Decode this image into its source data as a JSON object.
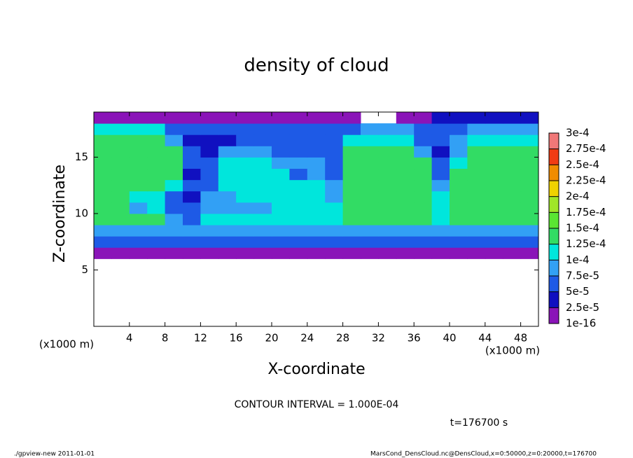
{
  "chart_data": {
    "type": "heatmap",
    "title": "density of cloud",
    "xlabel": "X-coordinate",
    "ylabel": "Z-coordinate",
    "x_unit": "(x1000 m)",
    "y_unit": "(x1000 m)",
    "xlim": [
      0,
      50
    ],
    "xticks": [
      4,
      8,
      12,
      16,
      20,
      24,
      28,
      32,
      36,
      40,
      44,
      48
    ],
    "ylim": [
      0,
      19
    ],
    "yticks": [
      5,
      10,
      15
    ],
    "x": [
      1,
      3,
      5,
      7,
      9,
      11,
      13,
      15,
      17,
      19,
      21,
      23,
      25,
      27,
      29,
      31,
      33,
      35,
      37,
      39,
      41,
      43,
      45,
      47,
      49
    ],
    "y": [
      6.5,
      7.5,
      8.5,
      9.5,
      10.5,
      11.5,
      12.5,
      13.5,
      14.5,
      15.5,
      16.5,
      17.5,
      18.5
    ],
    "z": [
      [
        1e-05,
        1e-05,
        1e-05,
        1e-05,
        1e-05,
        1e-05,
        1e-05,
        1e-05,
        1e-05,
        1e-05,
        1e-05,
        1e-05,
        1e-05,
        1e-05,
        1e-05,
        1e-05,
        1e-05,
        1e-05,
        1e-05,
        1e-05,
        1e-05,
        1e-05,
        1e-05,
        1e-05,
        1e-05
      ],
      [
        5e-05,
        5e-05,
        5e-05,
        5e-05,
        5e-05,
        5e-05,
        5e-05,
        5e-05,
        5e-05,
        5e-05,
        5e-05,
        5e-05,
        5e-05,
        5e-05,
        5e-05,
        5e-05,
        5e-05,
        5e-05,
        5e-05,
        5e-05,
        5e-05,
        5e-05,
        5e-05,
        5e-05,
        5e-05
      ],
      [
        9e-05,
        9e-05,
        9e-05,
        9e-05,
        9e-05,
        9e-05,
        9e-05,
        9e-05,
        9e-05,
        9e-05,
        9e-05,
        9e-05,
        9e-05,
        9e-05,
        9e-05,
        9e-05,
        9e-05,
        9e-05,
        9e-05,
        9e-05,
        9e-05,
        9e-05,
        9e-05,
        9e-05,
        9e-05
      ],
      [
        0.00013,
        0.00013,
        0.00013,
        0.00013,
        8e-05,
        5e-05,
        0.00011,
        0.00011,
        0.00011,
        0.00011,
        0.00011,
        0.00011,
        0.00011,
        0.00011,
        0.00013,
        0.00013,
        0.00013,
        0.00013,
        0.00013,
        0.00011,
        0.00013,
        0.00013,
        0.00013,
        0.00013,
        0.00013
      ],
      [
        0.00013,
        0.00013,
        8e-05,
        0.0001,
        6e-05,
        5e-05,
        9e-05,
        9e-05,
        9e-05,
        9e-05,
        0.00011,
        0.00011,
        0.00011,
        0.00011,
        0.00013,
        0.00013,
        0.00013,
        0.00013,
        0.00013,
        0.00011,
        0.00013,
        0.00013,
        0.00013,
        0.00013,
        0.00013
      ],
      [
        0.00013,
        0.00013,
        0.0001,
        0.00012,
        6e-05,
        4e-05,
        8e-05,
        8e-05,
        0.00011,
        0.00011,
        0.00011,
        0.00011,
        0.00011,
        9e-05,
        0.00013,
        0.00013,
        0.00013,
        0.00013,
        0.00013,
        0.00011,
        0.00013,
        0.00013,
        0.00013,
        0.00013,
        0.00013
      ],
      [
        0.00013,
        0.00013,
        0.00013,
        0.00013,
        0.00011,
        5e-05,
        6e-05,
        0.00012,
        0.00012,
        0.00012,
        0.00012,
        0.00012,
        0.00012,
        8e-05,
        0.00013,
        0.00013,
        0.00013,
        0.00013,
        0.00013,
        8e-05,
        0.00013,
        0.00013,
        0.00013,
        0.00013,
        0.00013
      ],
      [
        0.00013,
        0.00013,
        0.00013,
        0.00013,
        0.00013,
        4e-05,
        6e-05,
        0.00012,
        0.00012,
        0.00012,
        0.00012,
        7e-05,
        8e-05,
        6e-05,
        0.00013,
        0.00013,
        0.00013,
        0.00013,
        0.00013,
        6e-05,
        0.00013,
        0.00013,
        0.00013,
        0.00013,
        0.00013
      ],
      [
        0.00013,
        0.00013,
        0.00013,
        0.00013,
        0.00013,
        6e-05,
        5e-05,
        0.00011,
        0.00012,
        0.00012,
        9e-05,
        8e-05,
        8e-05,
        6e-05,
        0.00013,
        0.00013,
        0.00013,
        0.00013,
        0.00013,
        5e-05,
        0.0001,
        0.00013,
        0.00013,
        0.00013,
        0.00013
      ],
      [
        0.00013,
        0.00013,
        0.00013,
        0.00013,
        0.00013,
        5e-05,
        4e-05,
        9e-05,
        9e-05,
        9e-05,
        7e-05,
        7e-05,
        7e-05,
        7e-05,
        0.00013,
        0.00013,
        0.00013,
        0.00013,
        8e-05,
        4e-05,
        8e-05,
        0.00013,
        0.00013,
        0.00013,
        0.00013
      ],
      [
        0.00013,
        0.00013,
        0.00013,
        0.00013,
        8e-05,
        4e-05,
        4e-05,
        4e-05,
        6e-05,
        6e-05,
        6e-05,
        6e-05,
        6e-05,
        6e-05,
        0.0001,
        0.00012,
        0.00012,
        0.00012,
        6e-05,
        5e-05,
        9e-05,
        0.00012,
        0.00012,
        0.00012,
        0.00012
      ],
      [
        0.00012,
        0.00012,
        0.00012,
        0.00012,
        7e-05,
        5e-05,
        5e-05,
        5e-05,
        5e-05,
        5e-05,
        5e-05,
        5e-05,
        5e-05,
        5e-05,
        7e-05,
        9e-05,
        9e-05,
        9e-05,
        5e-05,
        5e-05,
        6e-05,
        9e-05,
        9e-05,
        9e-05,
        9e-05
      ],
      [
        2e-05,
        2e-05,
        2e-05,
        2e-05,
        2e-05,
        2e-05,
        2e-05,
        2e-05,
        2e-05,
        2e-05,
        2e-05,
        2e-05,
        2e-05,
        2e-05,
        2e-05,
        null,
        null,
        2e-05,
        1e-05,
        3e-05,
        3e-05,
        3e-05,
        3e-05,
        3e-05,
        3e-05
      ]
    ],
    "colorbar": {
      "ticks": [
        {
          "value": 1e-16,
          "label": "1e-16"
        },
        {
          "value": 2.5e-05,
          "label": "2.5e-5"
        },
        {
          "value": 5e-05,
          "label": "5e-5"
        },
        {
          "value": 7.5e-05,
          "label": "7.5e-5"
        },
        {
          "value": 0.0001,
          "label": "1e-4"
        },
        {
          "value": 0.000125,
          "label": "1.25e-4"
        },
        {
          "value": 0.00015,
          "label": "1.5e-4"
        },
        {
          "value": 0.000175,
          "label": "1.75e-4"
        },
        {
          "value": 0.0002,
          "label": "2e-4"
        },
        {
          "value": 0.000225,
          "label": "2.25e-4"
        },
        {
          "value": 0.00025,
          "label": "2.5e-4"
        },
        {
          "value": 0.000275,
          "label": "2.75e-4"
        },
        {
          "value": 0.0003,
          "label": "3e-4"
        }
      ],
      "colors": [
        "#8a14b8",
        "#1010c0",
        "#1e5ae6",
        "#32a0f5",
        "#00e6dc",
        "#32dc64",
        "#5ae632",
        "#a0e628",
        "#f0d200",
        "#f08c00",
        "#f03c14",
        "#f07878"
      ]
    },
    "contour_note": "CONTOUR INTERVAL = 1.000E-04",
    "time_note": "t=176700 s",
    "footer_left": "./gpview-new  2011-01-01",
    "footer_right": "MarsCond_DensCloud.nc@DensCloud,x=0:50000,z=0:20000,t=176700"
  }
}
